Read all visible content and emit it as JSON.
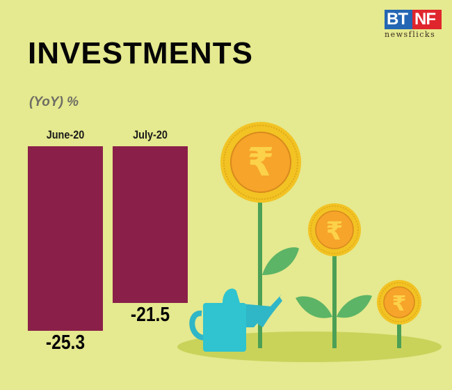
{
  "brand": {
    "logo_left": "BT",
    "logo_right": "NF",
    "logo_sub": "newsflicks",
    "colors": {
      "bt": "#2466b3",
      "nf": "#e0262d"
    }
  },
  "header": {
    "title": "INVESTMENTS",
    "subtitle": "(YoY) %"
  },
  "colors": {
    "background": "#e5e98f",
    "bar": "#8a2049"
  },
  "chart_data": {
    "type": "bar",
    "title": "INVESTMENTS",
    "subtitle": "(YoY) %",
    "categories": [
      "June-20",
      "July-20"
    ],
    "values": [
      -25.3,
      -21.5
    ],
    "value_labels": [
      "-25.3",
      "-21.5"
    ],
    "xlabel": "",
    "ylabel": "(YoY) %",
    "grid": false,
    "legend": null,
    "orientation": "bars hang downward from top baseline"
  },
  "illustration": {
    "icons": [
      "rupee-coin-plant-large",
      "rupee-coin-plant-medium",
      "rupee-coin-plant-small",
      "watering-can"
    ]
  }
}
